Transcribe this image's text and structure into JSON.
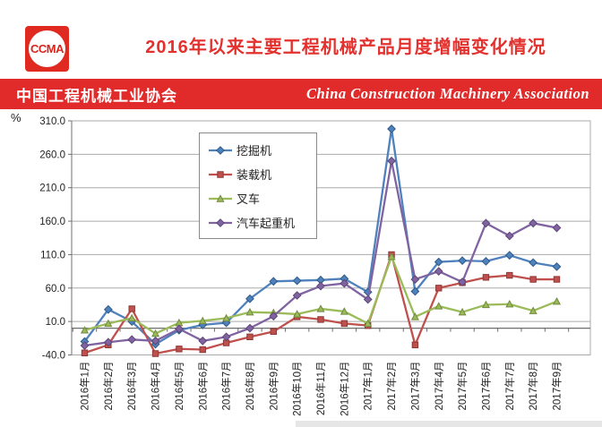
{
  "header": {
    "logo_text": "CCMA",
    "title": "2016年以来主要工程机械产品月度增幅变化情况"
  },
  "banner": {
    "left": "中国工程机械工业协会",
    "right": "China Construction Machinery Association"
  },
  "chart_data": {
    "type": "line",
    "unit_label": "%",
    "ylim": [
      -40,
      310
    ],
    "ytick_labels": [
      "310.0",
      "260.0",
      "210.0",
      "160.0",
      "110.0",
      "60.0",
      "10.0",
      "-40.0"
    ],
    "grid": true,
    "legend_position": "inside-top-left",
    "categories": [
      "2016年1月",
      "2016年2月",
      "2016年3月",
      "2016年4月",
      "2016年5月",
      "2016年6月",
      "2016年7月",
      "2016年8月",
      "2016年9月",
      "2016年10月",
      "2016年11月",
      "2016年12月",
      "2017年1月",
      "2017年2月",
      "2017年3月",
      "2017年4月",
      "2017年5月",
      "2017年6月",
      "2017年7月",
      "2017年8月",
      "2017年9月"
    ],
    "series": [
      {
        "key": "excavator",
        "name": "挖掘机",
        "color": "#4f81bd",
        "marker_edge": "#2e5a88",
        "marker": "diamond",
        "values": [
          -20,
          28,
          10,
          -24,
          -3,
          5,
          8,
          44,
          70,
          71,
          72,
          74,
          54,
          298,
          55,
          99,
          101,
          100,
          109,
          98,
          92
        ]
      },
      {
        "key": "loader",
        "name": "装载机",
        "color": "#c0504d",
        "marker_edge": "#8c3836",
        "marker": "square",
        "values": [
          -37,
          -25,
          29,
          -38,
          -31,
          -32,
          -22,
          -13,
          -5,
          17,
          13,
          7,
          4,
          110,
          -25,
          60,
          68,
          76,
          79,
          73,
          73
        ]
      },
      {
        "key": "forklift",
        "name": "叉车",
        "color": "#9bbb59",
        "marker_edge": "#71893f",
        "marker": "triangle",
        "values": [
          -3,
          7,
          15,
          -8,
          8,
          11,
          15,
          24,
          23,
          21,
          29,
          25,
          7,
          107,
          17,
          33,
          24,
          35,
          36,
          26,
          40
        ]
      },
      {
        "key": "truck-crane",
        "name": "汽车起重机",
        "color": "#8064a2",
        "marker_edge": "#5e4777",
        "marker": "diamond",
        "values": [
          -26,
          -21,
          -17,
          -19,
          -1,
          -19,
          -13,
          0,
          18,
          49,
          63,
          67,
          43,
          250,
          73,
          85,
          69,
          157,
          138,
          157,
          150
        ]
      }
    ]
  },
  "colors": {
    "title_red": "#e3312e",
    "banner_red": "#e12a2a",
    "grid_gray": "#ababab",
    "axis_gray": "#6f6f6f",
    "tick_text": "#222222"
  }
}
